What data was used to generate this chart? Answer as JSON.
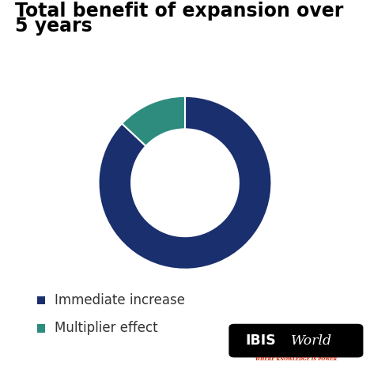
{
  "title_line1": "Total benefit of expansion over",
  "title_line2": "5 years",
  "slices": [
    87,
    13
  ],
  "colors": [
    "#1a2f6e",
    "#2d8c7e"
  ],
  "labels": [
    "Immediate increase",
    "Multiplier effect"
  ],
  "background_color": "#ffffff",
  "start_angle": 90,
  "title_fontsize": 17,
  "legend_fontsize": 12
}
